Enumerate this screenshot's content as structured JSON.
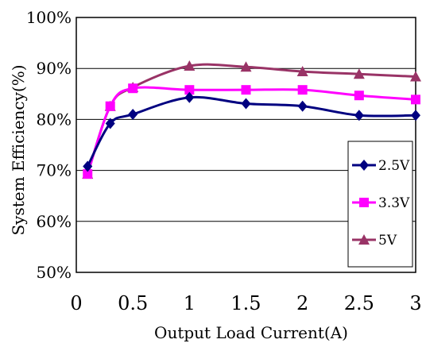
{
  "chart_data": {
    "type": "line",
    "xlabel": "Output Load Current(A)",
    "ylabel": "System Efficiency(%)",
    "xlim": [
      0,
      3
    ],
    "ylim": [
      50,
      100
    ],
    "x_ticks": [
      "0",
      "0.5",
      "1",
      "1.5",
      "2",
      "2.5",
      "3"
    ],
    "y_ticks": [
      "50%",
      "60%",
      "70%",
      "80%",
      "90%",
      "100%"
    ],
    "grid": "horizontal",
    "legend_position": "right",
    "series": [
      {
        "name": "2.5V",
        "color": "#000080",
        "marker": "diamond",
        "x": [
          0.1,
          0.3,
          0.5,
          1.0,
          1.5,
          2.0,
          2.5,
          3.0
        ],
        "y": [
          70.8,
          79.2,
          81.0,
          84.3,
          83.1,
          82.6,
          80.8,
          80.8
        ]
      },
      {
        "name": "3.3V",
        "color": "#ff00ff",
        "marker": "square",
        "x": [
          0.1,
          0.3,
          0.5,
          1.0,
          1.5,
          2.0,
          2.5,
          3.0
        ],
        "y": [
          69.3,
          82.6,
          86.1,
          85.8,
          85.8,
          85.8,
          84.7,
          83.9
        ]
      },
      {
        "name": "5V",
        "color": "#993366",
        "marker": "triangle",
        "x": [
          0.1,
          0.3,
          0.5,
          1.0,
          1.5,
          2.0,
          2.5,
          3.0
        ],
        "y": [
          69.3,
          82.6,
          86.3,
          90.5,
          90.3,
          89.4,
          88.9,
          88.4
        ]
      }
    ]
  }
}
